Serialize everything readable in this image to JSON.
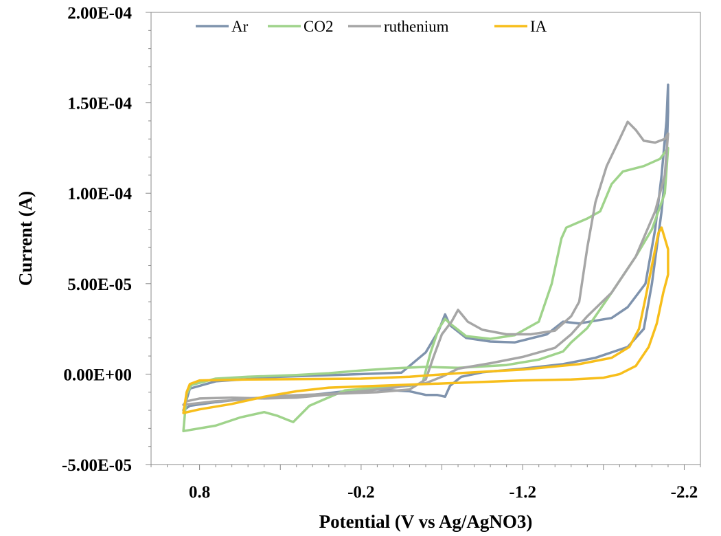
{
  "chart_data": {
    "type": "line",
    "title": "",
    "xlabel": "Potential (V vs Ag/AgNO3)",
    "ylabel": "Current (A)",
    "xlim": [
      1.1,
      -2.3
    ],
    "ylim": [
      -5e-05,
      0.0002
    ],
    "x_ticks": [
      0.8,
      -0.2,
      -1.2,
      -2.2
    ],
    "x_tick_labels": [
      "0.8",
      "-0.2",
      "-1.2",
      "-2.2"
    ],
    "y_ticks": [
      -5e-05,
      0,
      5e-05,
      0.0001,
      0.00015,
      0.0002
    ],
    "y_tick_labels": [
      "-5.00E-05",
      "0.00E+00",
      "5.00E-05",
      "1.00E-04",
      "1.50E-04",
      "2.00E-04"
    ],
    "grid": false,
    "legend_position": "top",
    "series": [
      {
        "name": "Ar",
        "color": "#7f93ad",
        "points": [
          [
            0.9,
            -2e-05
          ],
          [
            0.86,
            -8e-06
          ],
          [
            0.7,
            -4e-06
          ],
          [
            0.3,
            -1.5e-06
          ],
          [
            -0.2,
            0.0
          ],
          [
            -0.45,
            8e-07
          ],
          [
            -0.6,
            1.2e-05
          ],
          [
            -0.68,
            2.4e-05
          ],
          [
            -0.72,
            3.3e-05
          ],
          [
            -0.75,
            2.7e-05
          ],
          [
            -0.85,
            2e-05
          ],
          [
            -1.0,
            1.8e-05
          ],
          [
            -1.15,
            1.75e-05
          ],
          [
            -1.35,
            2.2e-05
          ],
          [
            -1.45,
            2.9e-05
          ],
          [
            -1.55,
            2.8e-05
          ],
          [
            -1.75,
            3.1e-05
          ],
          [
            -1.85,
            3.7e-05
          ],
          [
            -1.96,
            5e-05
          ],
          [
            -2.02,
            8e-05
          ],
          [
            -2.06,
            0.00011
          ],
          [
            -2.09,
            0.00014
          ],
          [
            -2.1,
            0.00016
          ],
          [
            -2.1,
            0.000145
          ],
          [
            -2.09,
            0.000118
          ],
          [
            -2.06,
            9e-05
          ],
          [
            -2.0,
            5e-05
          ],
          [
            -1.95,
            2.5e-05
          ],
          [
            -1.85,
            1.5e-05
          ],
          [
            -1.65,
            9e-06
          ],
          [
            -1.45,
            5.5e-06
          ],
          [
            -1.2,
            3e-06
          ],
          [
            -0.95,
            1e-06
          ],
          [
            -0.82,
            -1.5e-06
          ],
          [
            -0.75,
            -6.5e-06
          ],
          [
            -0.72,
            -1.25e-05
          ],
          [
            -0.67,
            -1.15e-05
          ],
          [
            -0.6,
            -1.15e-05
          ],
          [
            -0.5,
            -9.5e-06
          ],
          [
            -0.3,
            -8.5e-06
          ],
          [
            -0.1,
            -9.5e-06
          ],
          [
            0.15,
            -1.2e-05
          ],
          [
            0.3,
            -1.25e-05
          ],
          [
            0.5,
            -1.35e-05
          ],
          [
            0.7,
            -1.55e-05
          ],
          [
            0.86,
            -1.75e-05
          ],
          [
            0.9,
            -2e-05
          ]
        ]
      },
      {
        "name": "CO2",
        "color": "#9fd38b",
        "points": [
          [
            0.9,
            -3.15e-05
          ],
          [
            0.7,
            -2.85e-05
          ],
          [
            0.55,
            -2.4e-05
          ],
          [
            0.4,
            -2.1e-05
          ],
          [
            0.32,
            -2.3e-05
          ],
          [
            0.25,
            -2.55e-05
          ],
          [
            0.22,
            -2.65e-05
          ],
          [
            0.12,
            -1.75e-05
          ],
          [
            -0.1,
            -9e-06
          ],
          [
            -0.3,
            -7.5e-06
          ],
          [
            -0.5,
            -6.5e-06
          ],
          [
            -0.58,
            -5e-06
          ],
          [
            -0.63,
            1.2e-05
          ],
          [
            -0.68,
            2.5e-05
          ],
          [
            -0.72,
            3.05e-05
          ],
          [
            -0.75,
            2.8e-05
          ],
          [
            -0.85,
            2.1e-05
          ],
          [
            -1.0,
            1.95e-05
          ],
          [
            -1.15,
            2.15e-05
          ],
          [
            -1.3,
            2.9e-05
          ],
          [
            -1.38,
            5e-05
          ],
          [
            -1.44,
            7.5e-05
          ],
          [
            -1.47,
            8.1e-05
          ],
          [
            -1.6,
            8.6e-05
          ],
          [
            -1.68,
            9e-05
          ],
          [
            -1.75,
            0.000105
          ],
          [
            -1.82,
            0.000112
          ],
          [
            -1.95,
            0.000115
          ],
          [
            -2.05,
            0.000119
          ],
          [
            -2.1,
            0.000125
          ],
          [
            -2.08,
            0.0001
          ],
          [
            -2.0,
            8e-05
          ],
          [
            -1.9,
            6.5e-05
          ],
          [
            -1.75,
            4.5e-05
          ],
          [
            -1.6,
            2.55e-05
          ],
          [
            -1.5,
            1.75e-05
          ],
          [
            -1.45,
            1.25e-05
          ],
          [
            -1.3,
            8e-06
          ],
          [
            -1.1,
            5e-06
          ],
          [
            -0.8,
            3.5e-06
          ],
          [
            -0.6,
            4e-06
          ],
          [
            -0.4,
            3.2e-06
          ],
          [
            -0.2,
            2e-06
          ],
          [
            0.0,
            5e-07
          ],
          [
            0.2,
            -5e-07
          ],
          [
            0.5,
            -1.5e-06
          ],
          [
            0.7,
            -2.5e-06
          ],
          [
            0.85,
            -6e-06
          ],
          [
            0.88,
            -1.1e-05
          ],
          [
            0.9,
            -3.15e-05
          ]
        ]
      },
      {
        "name": "ruthenium",
        "color": "#a6a6a6",
        "points": [
          [
            0.9,
            -1.7e-05
          ],
          [
            0.7,
            -1.5e-05
          ],
          [
            0.5,
            -1.4e-05
          ],
          [
            0.3,
            -1.2e-05
          ],
          [
            0.0,
            -1.1e-05
          ],
          [
            -0.3,
            -1e-05
          ],
          [
            -0.5,
            -8.5e-06
          ],
          [
            -0.6,
            -3e-06
          ],
          [
            -0.65,
            1e-05
          ],
          [
            -0.7,
            2.2e-05
          ],
          [
            -0.76,
            2.9e-05
          ],
          [
            -0.8,
            3.55e-05
          ],
          [
            -0.86,
            2.9e-05
          ],
          [
            -0.95,
            2.45e-05
          ],
          [
            -1.1,
            2.2e-05
          ],
          [
            -1.25,
            2.2e-05
          ],
          [
            -1.4,
            2.4e-05
          ],
          [
            -1.5,
            3.2e-05
          ],
          [
            -1.55,
            4e-05
          ],
          [
            -1.6,
            7e-05
          ],
          [
            -1.65,
            9.5e-05
          ],
          [
            -1.72,
            0.000115
          ],
          [
            -1.8,
            0.00013
          ],
          [
            -1.85,
            0.0001395
          ],
          [
            -1.9,
            0.000135
          ],
          [
            -1.95,
            0.000129
          ],
          [
            -2.02,
            0.000128
          ],
          [
            -2.08,
            0.00013
          ],
          [
            -2.1,
            0.000133
          ],
          [
            -2.08,
            0.00011
          ],
          [
            -2.02,
            9e-05
          ],
          [
            -1.9,
            6.5e-05
          ],
          [
            -1.75,
            4.5e-05
          ],
          [
            -1.6,
            3.2e-05
          ],
          [
            -1.5,
            2.2e-05
          ],
          [
            -1.4,
            1.45e-05
          ],
          [
            -1.2,
            9.5e-06
          ],
          [
            -1.0,
            6e-06
          ],
          [
            -0.8,
            3e-06
          ],
          [
            -0.7,
            -1.5e-06
          ],
          [
            -0.6,
            -5e-06
          ],
          [
            -0.4,
            -7.5e-06
          ],
          [
            -0.1,
            -1.05e-05
          ],
          [
            0.2,
            -1.3e-05
          ],
          [
            0.4,
            -1.35e-05
          ],
          [
            0.6,
            -1.3e-05
          ],
          [
            0.8,
            -1.35e-05
          ],
          [
            0.88,
            -1.5e-05
          ],
          [
            0.9,
            -1.7e-05
          ]
        ]
      },
      {
        "name": "IA",
        "color": "#f7be1b",
        "points": [
          [
            0.9,
            -2.15e-05
          ],
          [
            0.8,
            -1.95e-05
          ],
          [
            0.6,
            -1.65e-05
          ],
          [
            0.4,
            -1.25e-05
          ],
          [
            0.2,
            -9.5e-06
          ],
          [
            0.0,
            -7.5e-06
          ],
          [
            -0.3,
            -6.5e-06
          ],
          [
            -0.6,
            -5.5e-06
          ],
          [
            -0.9,
            -4.5e-06
          ],
          [
            -1.2,
            -3.5e-06
          ],
          [
            -1.5,
            -3e-06
          ],
          [
            -1.7,
            -2e-06
          ],
          [
            -1.8,
            0.0
          ],
          [
            -1.9,
            4.5e-06
          ],
          [
            -1.98,
            1.5e-05
          ],
          [
            -2.03,
            2.8e-05
          ],
          [
            -2.07,
            4.5e-05
          ],
          [
            -2.1,
            5.5e-05
          ],
          [
            -2.1,
            6.9e-05
          ],
          [
            -2.08,
            7.5e-05
          ],
          [
            -2.06,
            8.1e-05
          ],
          [
            -2.04,
            7.8e-05
          ],
          [
            -2.0,
            6e-05
          ],
          [
            -1.96,
            4.2e-05
          ],
          [
            -1.92,
            2.5e-05
          ],
          [
            -1.86,
            1.5e-05
          ],
          [
            -1.75,
            9e-06
          ],
          [
            -1.55,
            5.5e-06
          ],
          [
            -1.2,
            2.5e-06
          ],
          [
            -0.8,
            5e-07
          ],
          [
            -0.5,
            -1.5e-06
          ],
          [
            -0.2,
            -2.5e-06
          ],
          [
            0.2,
            -2.8e-06
          ],
          [
            0.5,
            -3e-06
          ],
          [
            0.8,
            -3.5e-06
          ],
          [
            0.86,
            -5.5e-06
          ],
          [
            0.88,
            -1e-05
          ],
          [
            0.9,
            -2.15e-05
          ]
        ]
      }
    ]
  }
}
